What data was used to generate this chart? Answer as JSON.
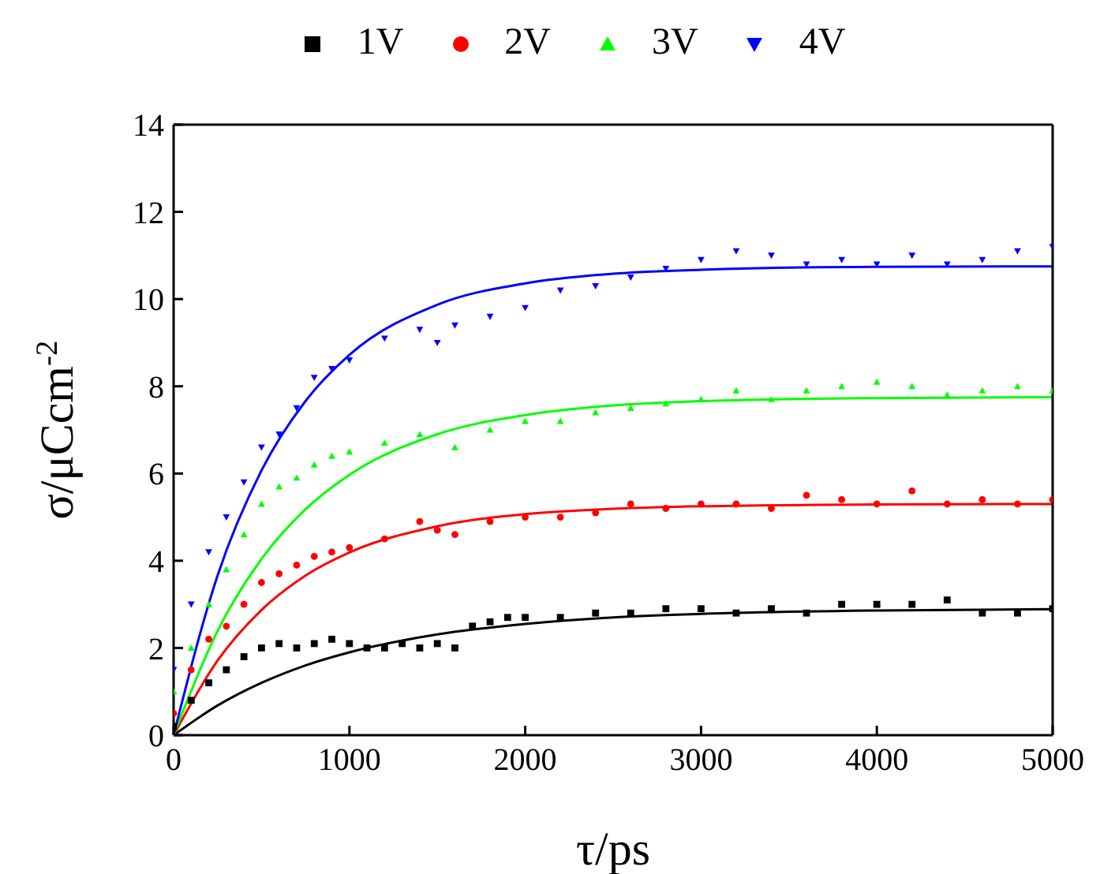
{
  "chart_data": {
    "type": "scatter",
    "xlabel": "τ/ps",
    "ylabel": "σ/μCcm$^{-2}$",
    "xlim": [
      0,
      5000
    ],
    "xticks": [
      0,
      1000,
      2000,
      3000,
      4000,
      5000
    ],
    "ylim": [
      0,
      14
    ],
    "yticks": [
      0,
      2,
      4,
      6,
      8,
      10,
      12,
      14
    ],
    "grid": false,
    "legend": "top",
    "series": [
      {
        "name": "1V",
        "color": "#000000",
        "marker": "square",
        "x": [
          0,
          100,
          200,
          300,
          400,
          500,
          600,
          700,
          800,
          900,
          1000,
          1100,
          1200,
          1300,
          1400,
          1500,
          1600,
          1700,
          1800,
          1900,
          2000,
          2200,
          2400,
          2600,
          2800,
          3000,
          3200,
          3400,
          3600,
          3800,
          4000,
          4200,
          4400,
          4600,
          4800,
          5000
        ],
        "values": [
          0.2,
          0.8,
          1.2,
          1.5,
          1.8,
          2.0,
          2.1,
          2.0,
          2.1,
          2.2,
          2.1,
          2.0,
          2.0,
          2.1,
          2.0,
          2.1,
          2.0,
          2.5,
          2.6,
          2.7,
          2.7,
          2.7,
          2.8,
          2.8,
          2.9,
          2.9,
          2.8,
          2.9,
          2.8,
          3.0,
          3.0,
          3.0,
          3.1,
          2.8,
          2.8,
          2.9
        ]
      },
      {
        "name": "2V",
        "color": "#ff0000",
        "marker": "circle",
        "x": [
          0,
          100,
          200,
          300,
          400,
          500,
          600,
          700,
          800,
          900,
          1000,
          1200,
          1400,
          1500,
          1600,
          1800,
          2000,
          2200,
          2400,
          2600,
          2800,
          3000,
          3200,
          3400,
          3600,
          3800,
          4000,
          4200,
          4400,
          4600,
          4800,
          5000
        ],
        "values": [
          0.5,
          1.5,
          2.2,
          2.5,
          3.0,
          3.5,
          3.7,
          3.9,
          4.1,
          4.2,
          4.3,
          4.5,
          4.9,
          4.7,
          4.6,
          4.9,
          5.0,
          5.0,
          5.1,
          5.3,
          5.2,
          5.3,
          5.3,
          5.2,
          5.5,
          5.4,
          5.3,
          5.6,
          5.3,
          5.4,
          5.3,
          5.4
        ]
      },
      {
        "name": "3V",
        "color": "#00ff00",
        "marker": "triangle",
        "x": [
          0,
          100,
          200,
          300,
          400,
          500,
          600,
          700,
          800,
          900,
          1000,
          1200,
          1400,
          1600,
          1800,
          2000,
          2200,
          2400,
          2600,
          2800,
          3000,
          3200,
          3400,
          3600,
          3800,
          4000,
          4200,
          4400,
          4600,
          4800,
          5000
        ],
        "values": [
          1.0,
          2.0,
          3.0,
          3.8,
          4.6,
          5.3,
          5.7,
          5.9,
          6.2,
          6.4,
          6.5,
          6.7,
          6.9,
          6.6,
          7.0,
          7.2,
          7.2,
          7.4,
          7.5,
          7.6,
          7.7,
          7.9,
          7.7,
          7.9,
          8.0,
          8.1,
          8.0,
          7.8,
          7.9,
          8.0,
          7.9
        ]
      },
      {
        "name": "4V",
        "color": "#0000ff",
        "marker": "triangle-down",
        "x": [
          0,
          100,
          200,
          300,
          400,
          500,
          600,
          700,
          800,
          900,
          1000,
          1200,
          1400,
          1500,
          1600,
          1800,
          2000,
          2200,
          2400,
          2600,
          2800,
          3000,
          3200,
          3400,
          3600,
          3800,
          4000,
          4200,
          4400,
          4600,
          4800,
          5000
        ],
        "values": [
          1.5,
          3.0,
          4.2,
          5.0,
          5.8,
          6.6,
          6.9,
          7.5,
          8.2,
          8.4,
          8.6,
          9.1,
          9.3,
          9.0,
          9.4,
          9.6,
          9.8,
          10.2,
          10.3,
          10.5,
          10.7,
          10.9,
          11.1,
          11.0,
          10.8,
          10.9,
          10.8,
          11.0,
          10.8,
          10.9,
          11.1,
          11.2
        ]
      },
      {
        "type": "line",
        "color": "#000000",
        "x": [
          0,
          250,
          500,
          750,
          1000,
          1500,
          2000,
          2500,
          3000,
          4000,
          5000
        ],
        "values": [
          0,
          0.68,
          1.2,
          1.6,
          1.9,
          2.31,
          2.55,
          2.7,
          2.78,
          2.86,
          2.89
        ]
      },
      {
        "type": "line",
        "color": "#ff0000",
        "x": [
          0,
          250,
          500,
          750,
          1000,
          1500,
          2000,
          2500,
          3000,
          4000,
          5000
        ],
        "values": [
          0,
          1.71,
          2.87,
          3.66,
          4.19,
          4.79,
          5.07,
          5.19,
          5.25,
          5.29,
          5.3
        ]
      },
      {
        "type": "line",
        "color": "#00ff00",
        "x": [
          0,
          250,
          500,
          750,
          1000,
          1500,
          2000,
          2500,
          3000,
          4000,
          5000
        ],
        "values": [
          0,
          2.39,
          4.04,
          5.18,
          5.97,
          6.9,
          7.34,
          7.56,
          7.66,
          7.73,
          7.75
        ]
      },
      {
        "type": "line",
        "color": "#0000ff",
        "x": [
          0,
          250,
          500,
          750,
          1000,
          1500,
          2000,
          2500,
          3000,
          4000,
          5000
        ],
        "values": [
          0,
          3.66,
          6.07,
          7.66,
          8.72,
          9.87,
          10.36,
          10.58,
          10.67,
          10.74,
          10.75
        ]
      }
    ]
  }
}
